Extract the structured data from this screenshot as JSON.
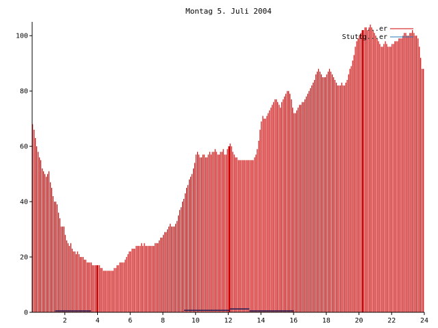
{
  "chart_data": {
    "type": "bar",
    "title": "Montag 5. Juli 2004",
    "xlim": [
      0,
      24
    ],
    "ylim": [
      0,
      105
    ],
    "x_ticks": [
      2,
      4,
      6,
      8,
      10,
      12,
      14,
      16,
      18,
      20,
      22,
      24
    ],
    "y_ticks": [
      0,
      20,
      40,
      60,
      80,
      100
    ],
    "legend_position": "top-right",
    "colors": {
      "series1": "#cc0000",
      "series2": "#1f78b4",
      "axis": "#000000"
    },
    "series": [
      {
        "name": "...er",
        "bar_width_hours": 0.0833,
        "points": [
          [
            0.04,
            68
          ],
          [
            0.13,
            66
          ],
          [
            0.21,
            63
          ],
          [
            0.29,
            60
          ],
          [
            0.38,
            58
          ],
          [
            0.46,
            56
          ],
          [
            0.54,
            55
          ],
          [
            0.63,
            52
          ],
          [
            0.71,
            51
          ],
          [
            0.79,
            50
          ],
          [
            0.88,
            49
          ],
          [
            0.96,
            50
          ],
          [
            1.04,
            51
          ],
          [
            1.13,
            47
          ],
          [
            1.21,
            45
          ],
          [
            1.29,
            42
          ],
          [
            1.38,
            40
          ],
          [
            1.46,
            40
          ],
          [
            1.54,
            39
          ],
          [
            1.63,
            36
          ],
          [
            1.71,
            34
          ],
          [
            1.79,
            31
          ],
          [
            1.88,
            31
          ],
          [
            1.96,
            31
          ],
          [
            2.04,
            28
          ],
          [
            2.13,
            26
          ],
          [
            2.21,
            25
          ],
          [
            2.29,
            24
          ],
          [
            2.38,
            25
          ],
          [
            2.46,
            23
          ],
          [
            2.54,
            22
          ],
          [
            2.63,
            22
          ],
          [
            2.71,
            21
          ],
          [
            2.79,
            22
          ],
          [
            2.88,
            21
          ],
          [
            2.96,
            20
          ],
          [
            3.04,
            20
          ],
          [
            3.13,
            20
          ],
          [
            3.21,
            19
          ],
          [
            3.29,
            19
          ],
          [
            3.38,
            18
          ],
          [
            3.46,
            18
          ],
          [
            3.54,
            18
          ],
          [
            3.63,
            18
          ],
          [
            3.71,
            17
          ],
          [
            3.79,
            17
          ],
          [
            3.88,
            17
          ],
          [
            3.96,
            17
          ],
          [
            4.04,
            17
          ],
          [
            4.13,
            17
          ],
          [
            4.21,
            16
          ],
          [
            4.29,
            16
          ],
          [
            4.38,
            15
          ],
          [
            4.46,
            15
          ],
          [
            4.54,
            15
          ],
          [
            4.63,
            15
          ],
          [
            4.71,
            15
          ],
          [
            4.79,
            15
          ],
          [
            4.88,
            15
          ],
          [
            4.96,
            15
          ],
          [
            5.04,
            16
          ],
          [
            5.13,
            16
          ],
          [
            5.21,
            17
          ],
          [
            5.29,
            17
          ],
          [
            5.38,
            18
          ],
          [
            5.46,
            18
          ],
          [
            5.54,
            18
          ],
          [
            5.63,
            18
          ],
          [
            5.71,
            19
          ],
          [
            5.79,
            20
          ],
          [
            5.88,
            21
          ],
          [
            5.96,
            22
          ],
          [
            6.04,
            22
          ],
          [
            6.13,
            23
          ],
          [
            6.21,
            23
          ],
          [
            6.29,
            23
          ],
          [
            6.38,
            24
          ],
          [
            6.46,
            24
          ],
          [
            6.54,
            24
          ],
          [
            6.63,
            24
          ],
          [
            6.71,
            25
          ],
          [
            6.79,
            24
          ],
          [
            6.88,
            25
          ],
          [
            6.96,
            24
          ],
          [
            7.04,
            24
          ],
          [
            7.13,
            24
          ],
          [
            7.21,
            24
          ],
          [
            7.29,
            24
          ],
          [
            7.38,
            24
          ],
          [
            7.46,
            24
          ],
          [
            7.54,
            25
          ],
          [
            7.63,
            25
          ],
          [
            7.71,
            25
          ],
          [
            7.79,
            26
          ],
          [
            7.88,
            27
          ],
          [
            7.96,
            27
          ],
          [
            8.04,
            28
          ],
          [
            8.13,
            29
          ],
          [
            8.21,
            29
          ],
          [
            8.29,
            30
          ],
          [
            8.38,
            31
          ],
          [
            8.46,
            32
          ],
          [
            8.54,
            31
          ],
          [
            8.63,
            31
          ],
          [
            8.71,
            31
          ],
          [
            8.79,
            32
          ],
          [
            8.88,
            33
          ],
          [
            8.96,
            35
          ],
          [
            9.04,
            37
          ],
          [
            9.13,
            38
          ],
          [
            9.21,
            40
          ],
          [
            9.29,
            41
          ],
          [
            9.38,
            43
          ],
          [
            9.46,
            45
          ],
          [
            9.54,
            46
          ],
          [
            9.63,
            48
          ],
          [
            9.71,
            49
          ],
          [
            9.79,
            50
          ],
          [
            9.88,
            52
          ],
          [
            9.96,
            54
          ],
          [
            10.04,
            57
          ],
          [
            10.13,
            58
          ],
          [
            10.21,
            57
          ],
          [
            10.29,
            56
          ],
          [
            10.38,
            56
          ],
          [
            10.46,
            57
          ],
          [
            10.54,
            57
          ],
          [
            10.63,
            56
          ],
          [
            10.71,
            56
          ],
          [
            10.79,
            57
          ],
          [
            10.88,
            58
          ],
          [
            10.96,
            57
          ],
          [
            11.04,
            58
          ],
          [
            11.13,
            58
          ],
          [
            11.21,
            59
          ],
          [
            11.29,
            58
          ],
          [
            11.38,
            57
          ],
          [
            11.46,
            57
          ],
          [
            11.54,
            58
          ],
          [
            11.63,
            58
          ],
          [
            11.71,
            59
          ],
          [
            11.79,
            57
          ],
          [
            11.88,
            57
          ],
          [
            11.96,
            59
          ],
          [
            12.04,
            60
          ],
          [
            12.13,
            61
          ],
          [
            12.21,
            60
          ],
          [
            12.29,
            58
          ],
          [
            12.38,
            57
          ],
          [
            12.46,
            56
          ],
          [
            12.54,
            56
          ],
          [
            12.63,
            55
          ],
          [
            12.71,
            55
          ],
          [
            12.79,
            55
          ],
          [
            12.88,
            55
          ],
          [
            12.96,
            55
          ],
          [
            13.04,
            55
          ],
          [
            13.13,
            55
          ],
          [
            13.21,
            55
          ],
          [
            13.29,
            55
          ],
          [
            13.38,
            55
          ],
          [
            13.46,
            55
          ],
          [
            13.54,
            55
          ],
          [
            13.63,
            56
          ],
          [
            13.71,
            57
          ],
          [
            13.79,
            59
          ],
          [
            13.88,
            62
          ],
          [
            13.96,
            66
          ],
          [
            14.04,
            69
          ],
          [
            14.13,
            71
          ],
          [
            14.21,
            70
          ],
          [
            14.29,
            70
          ],
          [
            14.38,
            71
          ],
          [
            14.46,
            72
          ],
          [
            14.54,
            73
          ],
          [
            14.63,
            74
          ],
          [
            14.71,
            75
          ],
          [
            14.79,
            76
          ],
          [
            14.88,
            77
          ],
          [
            14.96,
            77
          ],
          [
            15.04,
            76
          ],
          [
            15.13,
            75
          ],
          [
            15.21,
            74
          ],
          [
            15.29,
            76
          ],
          [
            15.38,
            77
          ],
          [
            15.46,
            78
          ],
          [
            15.54,
            79
          ],
          [
            15.63,
            80
          ],
          [
            15.71,
            80
          ],
          [
            15.79,
            79
          ],
          [
            15.88,
            77
          ],
          [
            15.96,
            74
          ],
          [
            16.04,
            72
          ],
          [
            16.13,
            72
          ],
          [
            16.21,
            73
          ],
          [
            16.29,
            74
          ],
          [
            16.38,
            75
          ],
          [
            16.46,
            75
          ],
          [
            16.54,
            76
          ],
          [
            16.63,
            76
          ],
          [
            16.71,
            77
          ],
          [
            16.79,
            78
          ],
          [
            16.88,
            79
          ],
          [
            16.96,
            80
          ],
          [
            17.04,
            81
          ],
          [
            17.13,
            82
          ],
          [
            17.21,
            83
          ],
          [
            17.29,
            84
          ],
          [
            17.38,
            86
          ],
          [
            17.46,
            87
          ],
          [
            17.54,
            88
          ],
          [
            17.63,
            87
          ],
          [
            17.71,
            86
          ],
          [
            17.79,
            85
          ],
          [
            17.88,
            85
          ],
          [
            17.96,
            85
          ],
          [
            18.04,
            86
          ],
          [
            18.13,
            87
          ],
          [
            18.21,
            88
          ],
          [
            18.29,
            87
          ],
          [
            18.38,
            86
          ],
          [
            18.46,
            85
          ],
          [
            18.54,
            84
          ],
          [
            18.63,
            83
          ],
          [
            18.71,
            82
          ],
          [
            18.79,
            82
          ],
          [
            18.88,
            82
          ],
          [
            18.96,
            83
          ],
          [
            19.04,
            82
          ],
          [
            19.13,
            82
          ],
          [
            19.21,
            83
          ],
          [
            19.29,
            84
          ],
          [
            19.38,
            86
          ],
          [
            19.46,
            88
          ],
          [
            19.54,
            89
          ],
          [
            19.63,
            91
          ],
          [
            19.71,
            93
          ],
          [
            19.79,
            96
          ],
          [
            19.88,
            98
          ],
          [
            19.96,
            99
          ],
          [
            20.04,
            100
          ],
          [
            20.13,
            101
          ],
          [
            20.21,
            102
          ],
          [
            20.29,
            102
          ],
          [
            20.38,
            103
          ],
          [
            20.46,
            103
          ],
          [
            20.54,
            102
          ],
          [
            20.63,
            103
          ],
          [
            20.71,
            104
          ],
          [
            20.79,
            103
          ],
          [
            20.88,
            102
          ],
          [
            20.96,
            101
          ],
          [
            21.04,
            100
          ],
          [
            21.13,
            99
          ],
          [
            21.21,
            98
          ],
          [
            21.29,
            97
          ],
          [
            21.38,
            96
          ],
          [
            21.46,
            96
          ],
          [
            21.54,
            97
          ],
          [
            21.63,
            98
          ],
          [
            21.71,
            97
          ],
          [
            21.79,
            96
          ],
          [
            21.88,
            96
          ],
          [
            21.96,
            96
          ],
          [
            22.04,
            97
          ],
          [
            22.13,
            97
          ],
          [
            22.21,
            98
          ],
          [
            22.29,
            98
          ],
          [
            22.38,
            98
          ],
          [
            22.46,
            99
          ],
          [
            22.54,
            99
          ],
          [
            22.63,
            99
          ],
          [
            22.71,
            100
          ],
          [
            22.79,
            101
          ],
          [
            22.88,
            101
          ],
          [
            22.96,
            100
          ],
          [
            23.04,
            100
          ],
          [
            23.13,
            101
          ],
          [
            23.21,
            101
          ],
          [
            23.29,
            102
          ],
          [
            23.38,
            101
          ],
          [
            23.46,
            100
          ],
          [
            23.54,
            100
          ],
          [
            23.63,
            99
          ],
          [
            23.71,
            96
          ],
          [
            23.79,
            92
          ],
          [
            23.88,
            88
          ],
          [
            23.96,
            88
          ]
        ],
        "highlight_bars": [
          [
            4.0,
            17
          ],
          [
            12.08,
            60
          ],
          [
            20.25,
            102
          ]
        ]
      },
      {
        "name": "Stuttg...er",
        "segments": [
          [
            1.4,
            3.6,
            0.5
          ],
          [
            9.3,
            12.1,
            0.7
          ],
          [
            12.1,
            13.3,
            1.2
          ],
          [
            13.3,
            16.0,
            0.5
          ]
        ]
      }
    ]
  }
}
